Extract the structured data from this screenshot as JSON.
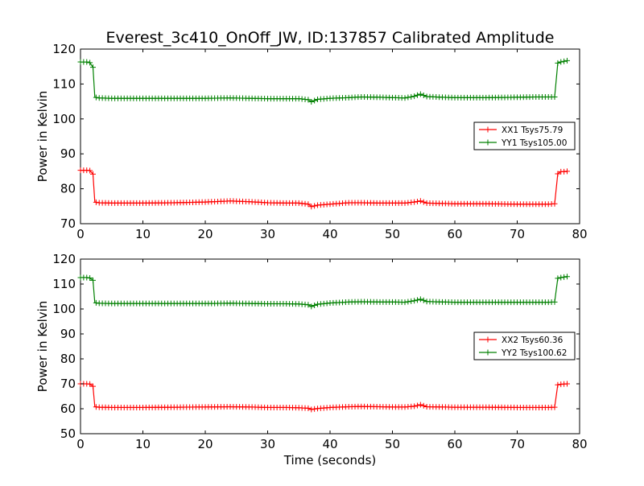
{
  "figure": {
    "title": "Everest_3c410_OnOff_JW, ID:137857 Calibrated Amplitude"
  },
  "chart_data": [
    {
      "type": "line",
      "title": "Everest_3c410_OnOff_JW, ID:137857 Calibrated Amplitude",
      "xlabel": "",
      "ylabel": "Power in Kelvin",
      "xlim": [
        0,
        80
      ],
      "ylim": [
        70,
        120
      ],
      "xticks": [
        "0",
        "10",
        "20",
        "30",
        "40",
        "50",
        "60",
        "70",
        "80"
      ],
      "yticks": [
        "70",
        "80",
        "90",
        "100",
        "110",
        "120"
      ],
      "grid": false,
      "legend_position": "center-right",
      "marker": "+",
      "series": [
        {
          "name": "XX1 Tsys75.79",
          "color": "#ff0000",
          "x": [
            0.0,
            0.5,
            1.0,
            1.5,
            2.0,
            2.3,
            3.0,
            5.0,
            8.0,
            10.0,
            15.0,
            20.0,
            24.0,
            27.0,
            30.0,
            33.0,
            35.0,
            36.5,
            37.0,
            38.0,
            40.0,
            43.0,
            45.0,
            48.0,
            50.0,
            52.0,
            53.5,
            54.5,
            55.5,
            58.0,
            60.0,
            65.0,
            70.0,
            73.0,
            75.0,
            76.0,
            76.5,
            77.0,
            77.5,
            78.0
          ],
          "y": [
            85.3,
            85.3,
            85.3,
            85.2,
            84.2,
            76.2,
            76.0,
            75.9,
            75.9,
            75.9,
            76.0,
            76.2,
            76.5,
            76.3,
            76.0,
            75.9,
            75.9,
            75.6,
            74.9,
            75.3,
            75.6,
            76.0,
            76.0,
            75.9,
            75.9,
            75.9,
            76.2,
            76.5,
            75.9,
            75.8,
            75.7,
            75.7,
            75.6,
            75.6,
            75.6,
            75.7,
            84.3,
            84.9,
            84.9,
            85.0
          ]
        },
        {
          "name": "YY1 Tsys105.00",
          "color": "#008000",
          "x": [
            0.0,
            0.5,
            1.0,
            1.5,
            2.0,
            2.3,
            3.0,
            5.0,
            8.0,
            10.0,
            15.0,
            20.0,
            24.0,
            27.0,
            30.0,
            33.0,
            35.0,
            36.5,
            37.0,
            38.0,
            40.0,
            43.0,
            45.0,
            48.0,
            50.0,
            52.0,
            53.5,
            54.5,
            55.5,
            58.0,
            60.0,
            65.0,
            70.0,
            73.0,
            75.0,
            76.0,
            76.5,
            77.0,
            77.5,
            78.0
          ],
          "y": [
            116.3,
            116.3,
            116.3,
            116.1,
            114.8,
            106.2,
            106.0,
            105.9,
            105.9,
            105.9,
            105.9,
            105.9,
            106.0,
            105.9,
            105.8,
            105.8,
            105.8,
            105.5,
            104.9,
            105.6,
            105.9,
            106.1,
            106.3,
            106.2,
            106.1,
            106.0,
            106.5,
            107.1,
            106.4,
            106.2,
            106.1,
            106.1,
            106.2,
            106.3,
            106.3,
            106.3,
            116.0,
            116.3,
            116.5,
            116.7
          ]
        }
      ]
    },
    {
      "type": "line",
      "title": "",
      "xlabel": "Time (seconds)",
      "ylabel": "Power in Kelvin",
      "xlim": [
        0,
        80
      ],
      "ylim": [
        50,
        120
      ],
      "xticks": [
        "0",
        "10",
        "20",
        "30",
        "40",
        "50",
        "60",
        "70",
        "80"
      ],
      "yticks": [
        "50",
        "60",
        "70",
        "80",
        "90",
        "100",
        "110",
        "120"
      ],
      "grid": false,
      "legend_position": "center-right",
      "marker": "+",
      "series": [
        {
          "name": "XX2 Tsys60.36",
          "color": "#ff0000",
          "x": [
            0.0,
            0.5,
            1.0,
            1.5,
            2.0,
            2.3,
            3.0,
            5.0,
            8.0,
            10.0,
            15.0,
            20.0,
            24.0,
            27.0,
            30.0,
            33.0,
            35.0,
            36.5,
            37.0,
            38.0,
            40.0,
            43.0,
            45.0,
            48.0,
            50.0,
            52.0,
            53.5,
            54.5,
            55.5,
            58.0,
            60.0,
            65.0,
            70.0,
            73.0,
            75.0,
            76.0,
            76.5,
            77.0,
            77.5,
            78.0
          ],
          "y": [
            70.0,
            70.0,
            70.0,
            69.9,
            69.0,
            60.8,
            60.6,
            60.5,
            60.5,
            60.5,
            60.6,
            60.7,
            60.8,
            60.7,
            60.5,
            60.5,
            60.4,
            60.2,
            59.7,
            60.1,
            60.5,
            60.8,
            60.9,
            60.8,
            60.7,
            60.7,
            61.0,
            61.6,
            60.8,
            60.7,
            60.6,
            60.6,
            60.5,
            60.5,
            60.5,
            60.6,
            69.6,
            69.8,
            69.9,
            70.0
          ]
        },
        {
          "name": "YY2 Tsys100.62",
          "color": "#008000",
          "x": [
            0.0,
            0.5,
            1.0,
            1.5,
            2.0,
            2.3,
            3.0,
            5.0,
            8.0,
            10.0,
            15.0,
            20.0,
            24.0,
            27.0,
            30.0,
            33.0,
            35.0,
            36.5,
            37.0,
            38.0,
            40.0,
            43.0,
            45.0,
            48.0,
            50.0,
            52.0,
            53.5,
            54.5,
            55.5,
            58.0,
            60.0,
            65.0,
            70.0,
            73.0,
            75.0,
            76.0,
            76.5,
            77.0,
            77.5,
            78.0
          ],
          "y": [
            112.6,
            112.6,
            112.6,
            112.4,
            111.5,
            102.5,
            102.3,
            102.2,
            102.2,
            102.2,
            102.2,
            102.2,
            102.3,
            102.2,
            102.1,
            102.1,
            102.0,
            101.7,
            101.0,
            101.9,
            102.4,
            102.8,
            102.9,
            102.8,
            102.8,
            102.7,
            103.3,
            103.9,
            103.0,
            102.8,
            102.7,
            102.7,
            102.7,
            102.7,
            102.7,
            102.8,
            112.3,
            112.6,
            112.8,
            113.0
          ]
        }
      ]
    }
  ]
}
